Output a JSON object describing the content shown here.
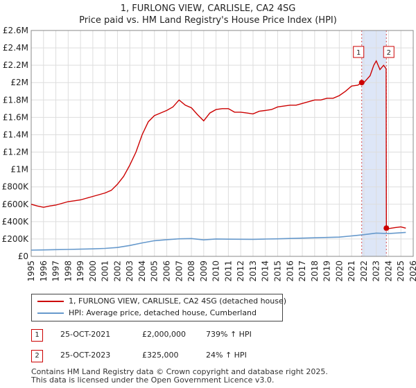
{
  "title_line1": "1, FURLONG VIEW, CARLISLE, CA2 4SG",
  "title_line2": "Price paid vs. HM Land Registry's House Price Index (HPI)",
  "chart_data": {
    "type": "line",
    "title": "1, FURLONG VIEW, CARLISLE, CA2 4SG — Price paid vs. HM Land Registry's House Price Index (HPI)",
    "xlabel": "",
    "ylabel": "",
    "xlim": [
      1995,
      2026
    ],
    "ylim": [
      0,
      2600000
    ],
    "y_ticks": [
      0,
      200000,
      400000,
      600000,
      800000,
      1000000,
      1200000,
      1400000,
      1600000,
      1800000,
      2000000,
      2200000,
      2400000,
      2600000
    ],
    "y_tick_labels": [
      "£0",
      "£200K",
      "£400K",
      "£600K",
      "£800K",
      "£1M",
      "£1.2M",
      "£1.4M",
      "£1.6M",
      "£1.8M",
      "£2M",
      "£2.2M",
      "£2.4M",
      "£2.6M"
    ],
    "x_ticks": [
      1995,
      1996,
      1997,
      1998,
      1999,
      2000,
      2001,
      2002,
      2003,
      2004,
      2005,
      2006,
      2007,
      2008,
      2009,
      2010,
      2011,
      2012,
      2013,
      2014,
      2015,
      2016,
      2017,
      2018,
      2019,
      2020,
      2021,
      2022,
      2023,
      2024,
      2025,
      2026
    ],
    "grid": true,
    "shaded_region": [
      2021.82,
      2023.82
    ],
    "series": [
      {
        "name": "1, FURLONG VIEW, CARLISLE, CA2 4SG (detached house)",
        "color": "#cc0000",
        "x": [
          1995.0,
          1995.5,
          1996.0,
          1996.5,
          1997.0,
          1997.5,
          1998.0,
          1998.5,
          1999.0,
          1999.5,
          2000.0,
          2000.5,
          2001.0,
          2001.5,
          2002.0,
          2002.5,
          2003.0,
          2003.5,
          2004.0,
          2004.5,
          2005.0,
          2005.5,
          2006.0,
          2006.5,
          2007.0,
          2007.5,
          2008.0,
          2008.5,
          2009.0,
          2009.5,
          2010.0,
          2010.5,
          2011.0,
          2011.5,
          2012.0,
          2012.5,
          2013.0,
          2013.5,
          2014.0,
          2014.5,
          2015.0,
          2015.5,
          2016.0,
          2016.5,
          2017.0,
          2017.5,
          2018.0,
          2018.5,
          2019.0,
          2019.5,
          2020.0,
          2020.5,
          2021.0,
          2021.5,
          2021.82,
          2022.0,
          2022.5,
          2022.8,
          2023.0,
          2023.3,
          2023.6,
          2023.8,
          2023.82,
          2024.0,
          2024.5,
          2025.0,
          2025.4
        ],
        "values": [
          600000,
          580000,
          565000,
          580000,
          590000,
          610000,
          630000,
          640000,
          650000,
          670000,
          690000,
          710000,
          730000,
          760000,
          830000,
          920000,
          1050000,
          1200000,
          1400000,
          1550000,
          1620000,
          1650000,
          1680000,
          1720000,
          1800000,
          1740000,
          1710000,
          1630000,
          1560000,
          1650000,
          1690000,
          1700000,
          1700000,
          1660000,
          1660000,
          1650000,
          1640000,
          1670000,
          1680000,
          1690000,
          1720000,
          1730000,
          1740000,
          1740000,
          1760000,
          1780000,
          1800000,
          1800000,
          1820000,
          1820000,
          1850000,
          1900000,
          1960000,
          1970000,
          2000000,
          2000000,
          2080000,
          2200000,
          2250000,
          2150000,
          2200000,
          2160000,
          325000,
          320000,
          330000,
          340000,
          325000
        ]
      },
      {
        "name": "HPI: Average price, detached house, Cumberland",
        "color": "#6699cc",
        "x": [
          1995,
          1996,
          1997,
          1998,
          1999,
          2000,
          2001,
          2002,
          2003,
          2004,
          2005,
          2006,
          2007,
          2008,
          2009,
          2010,
          2011,
          2012,
          2013,
          2014,
          2015,
          2016,
          2017,
          2018,
          2019,
          2020,
          2021,
          2022,
          2023,
          2024,
          2025,
          2025.4
        ],
        "values": [
          72000,
          74000,
          77000,
          80000,
          83000,
          86000,
          92000,
          102000,
          125000,
          155000,
          180000,
          192000,
          202000,
          205000,
          190000,
          200000,
          198000,
          197000,
          196000,
          199000,
          202000,
          206000,
          210000,
          214000,
          218000,
          222000,
          235000,
          250000,
          268000,
          262000,
          272000,
          276000
        ]
      }
    ],
    "sales": [
      {
        "label": "1",
        "x": 2021.82,
        "value": 2000000
      },
      {
        "label": "2",
        "x": 2023.82,
        "value": 325000
      }
    ]
  },
  "legend": {
    "price_paid": "1, FURLONG VIEW, CARLISLE, CA2 4SG (detached house)",
    "hpi": "HPI: Average price, detached house, Cumberland"
  },
  "sales_table": [
    {
      "label": "1",
      "date": "25-OCT-2021",
      "price": "£2,000,000",
      "hpi": "739% ↑ HPI"
    },
    {
      "label": "2",
      "date": "25-OCT-2023",
      "price": "£325,000",
      "hpi": "24% ↑ HPI"
    }
  ],
  "footer_line1": "Contains HM Land Registry data © Crown copyright and database right 2025.",
  "footer_line2": "This data is licensed under the Open Government Licence v3.0.",
  "colors": {
    "price_line": "#cc0000",
    "hpi_line": "#6699cc",
    "shade": "#dde6f7",
    "grid": "#dddddd"
  }
}
